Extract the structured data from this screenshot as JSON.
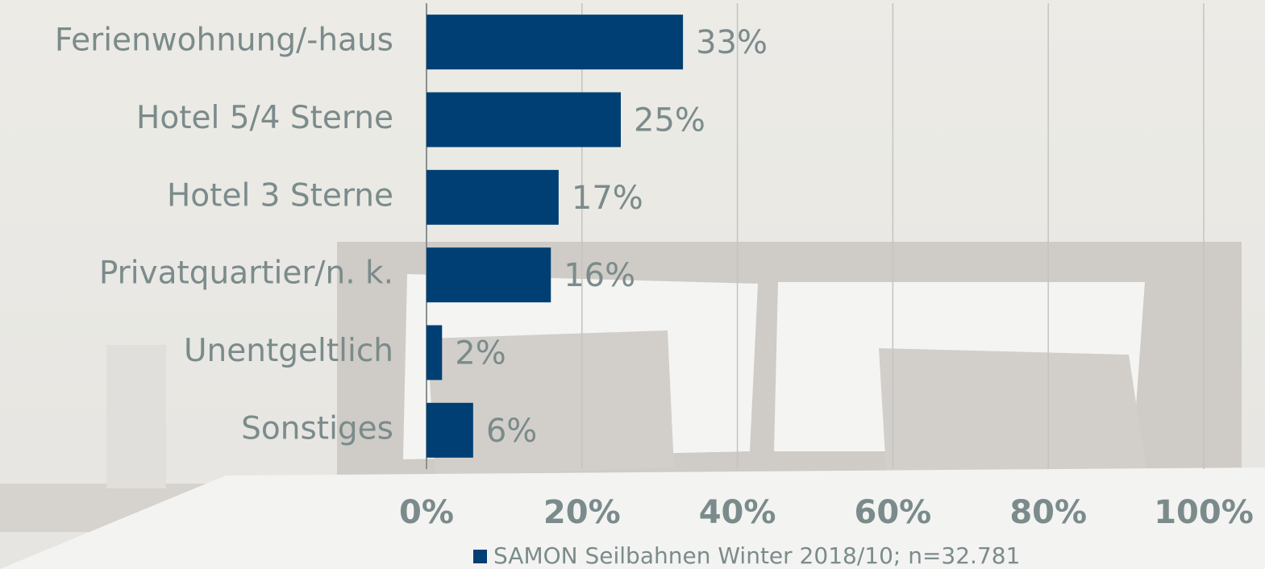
{
  "chart_data": {
    "type": "bar",
    "orientation": "horizontal",
    "categories": [
      "Ferienwohnung/-haus",
      "Hotel 5/4 Sterne",
      "Hotel 3 Sterne",
      "Privatquartier/n. k.",
      "Unentgeltlich",
      "Sonstiges"
    ],
    "series": [
      {
        "name": "SAMON Seilbahnen Winter 2018/10; n=32.781",
        "color": "#003f73",
        "values": [
          33,
          25,
          17,
          16,
          2,
          6
        ],
        "value_labels": [
          "33%",
          "25%",
          "17%",
          "16%",
          "2%",
          "6%"
        ]
      }
    ],
    "xlim": [
      0,
      100
    ],
    "xticks": [
      {
        "value": 0,
        "label": "0%"
      },
      {
        "value": 20,
        "label": "20%"
      },
      {
        "value": 40,
        "label": "40%"
      },
      {
        "value": 60,
        "label": "60%"
      },
      {
        "value": 80,
        "label": "80%"
      },
      {
        "value": 100,
        "label": "100%"
      }
    ],
    "grid": true,
    "legend": "bottom"
  }
}
